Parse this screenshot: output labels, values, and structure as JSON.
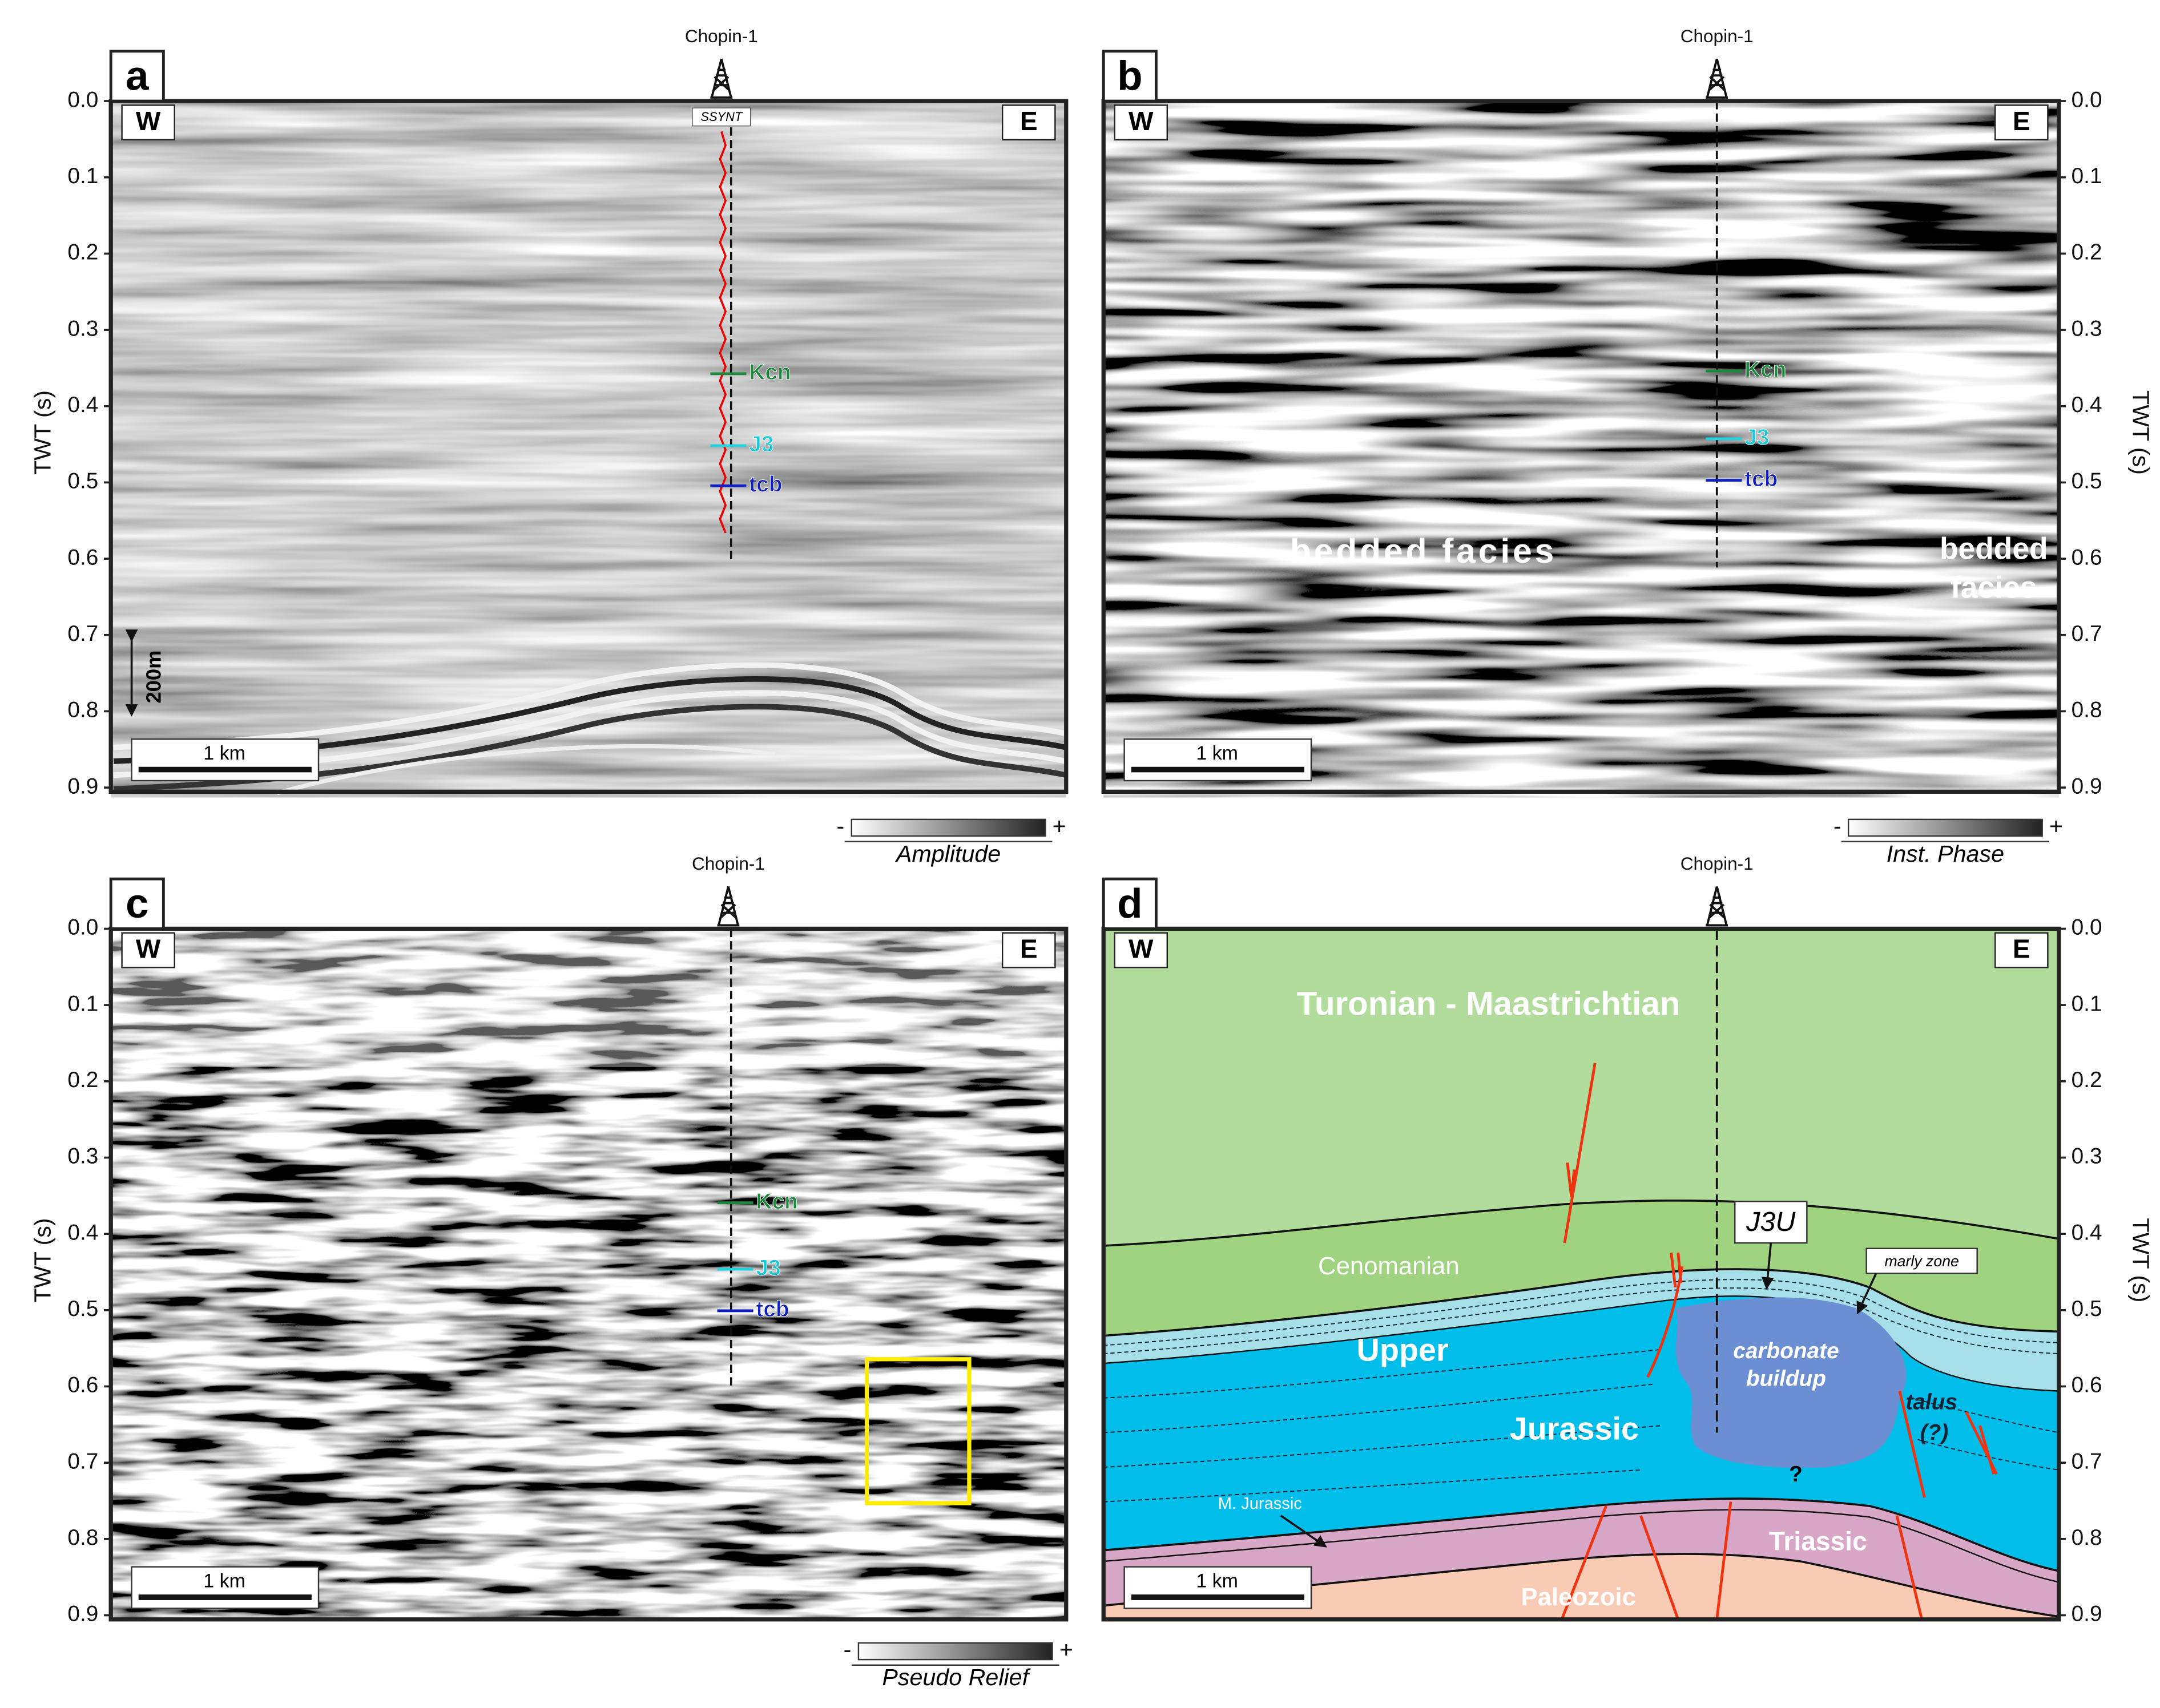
{
  "figure": {
    "well": "Chopin-1",
    "west": "W",
    "east": "E",
    "twt_label": "TWT (s)",
    "twt_ticks": [
      "0.0",
      "0.1",
      "0.2",
      "0.3",
      "0.4",
      "0.5",
      "0.6",
      "0.7",
      "0.8",
      "0.9"
    ],
    "scale_bar": "1 km",
    "minus": "-",
    "plus": "+"
  },
  "panels": [
    {
      "letter": "a",
      "synthetic": "SSYNT",
      "vertical_scale": "200m",
      "horizons": [
        "Kcn",
        "J3",
        "tcb"
      ],
      "colorbar": "Amplitude"
    },
    {
      "letter": "b",
      "horizons": [
        "Kcn",
        "J3",
        "tcb"
      ],
      "facies_left": "bedded facies",
      "facies_right": [
        "bedded",
        "facies"
      ],
      "colorbar": "Inst. Phase"
    },
    {
      "letter": "c",
      "horizons": [
        "Kcn",
        "J3",
        "tcb"
      ],
      "colorbar": "Pseudo Relief"
    },
    {
      "letter": "d",
      "units": {
        "top": "Turonian - Maastrichtian",
        "cenomanian": "Cenomanian",
        "j3u": "J3U",
        "marly": "marly zone",
        "upper": "Upper",
        "jurassic": "Jurassic",
        "buildup": [
          "carbonate",
          "buildup"
        ],
        "talus": [
          "talus",
          "(?)"
        ],
        "question": "?",
        "mid_jurassic": "M. Jurassic",
        "triassic": "Triassic",
        "paleozoic": "Paleozoic"
      }
    }
  ]
}
